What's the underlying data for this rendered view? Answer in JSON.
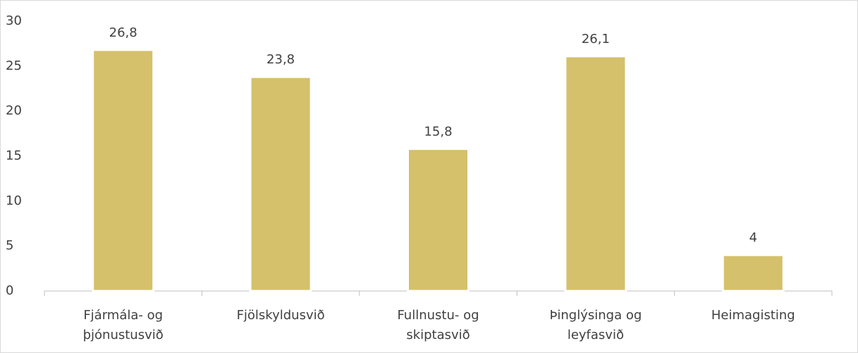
{
  "chart_data": {
    "type": "bar",
    "categories": [
      "Fjármála- og þjónustusvið",
      "Fjölskyldusvið",
      "Fullnustu- og skiptasvið",
      "Þinglýsinga og leyfasvið",
      "Heimagisting"
    ],
    "values": [
      26.8,
      23.8,
      15.8,
      26.1,
      4
    ],
    "value_labels": [
      "26,8",
      "23,8",
      "15,8",
      "26,1",
      "4"
    ],
    "color": "#d5c06b",
    "ylim": [
      0,
      30
    ],
    "yticks": [
      0,
      5,
      10,
      15,
      20,
      25,
      30
    ],
    "grid": false
  }
}
